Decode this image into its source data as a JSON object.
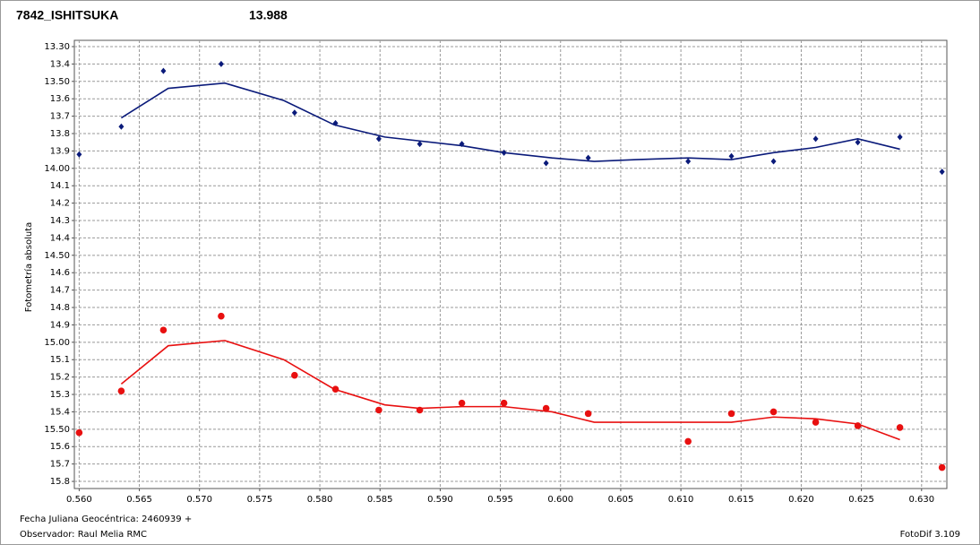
{
  "chart_data": {
    "type": "scatter",
    "title": "7842_ISHITSUKA",
    "title_color": "#e01010",
    "header_value": "13.988",
    "header_value_color": "#101080",
    "ylabel": "Fotometría absoluta",
    "footer_left": [
      "Fecha Juliana Geocéntrica: 2460939 +",
      "Observador: Raul Melia RMC"
    ],
    "footer_right": "FotoDif 3.109",
    "xlim": [
      0.5596,
      0.6321
    ],
    "ylim": [
      13.264,
      15.841
    ],
    "y_inverted": true,
    "grid": true,
    "xticks": [
      {
        "value": 0.56,
        "label": "0.560"
      },
      {
        "value": 0.565,
        "label": "0.565"
      },
      {
        "value": 0.57,
        "label": "0.570"
      },
      {
        "value": 0.575,
        "label": "0.575"
      },
      {
        "value": 0.58,
        "label": "0.580"
      },
      {
        "value": 0.585,
        "label": "0.585"
      },
      {
        "value": 0.59,
        "label": "0.590"
      },
      {
        "value": 0.595,
        "label": "0.595"
      },
      {
        "value": 0.6,
        "label": "0.600"
      },
      {
        "value": 0.605,
        "label": "0.605"
      },
      {
        "value": 0.61,
        "label": "0.610"
      },
      {
        "value": 0.615,
        "label": "0.615"
      },
      {
        "value": 0.62,
        "label": "0.620"
      },
      {
        "value": 0.625,
        "label": "0.625"
      },
      {
        "value": 0.63,
        "label": "0.630"
      }
    ],
    "yticks": [
      {
        "value": 13.3,
        "label": "13.30"
      },
      13.4,
      {
        "value": 13.5,
        "label": "13.50"
      },
      13.6,
      13.7,
      13.8,
      13.9,
      {
        "value": 14.0,
        "label": "14.00"
      },
      14.1,
      14.2,
      14.3,
      14.4,
      {
        "value": 14.5,
        "label": "14.50"
      },
      14.6,
      14.7,
      14.8,
      14.9,
      {
        "value": 15.0,
        "label": "15.00"
      },
      15.1,
      15.2,
      15.3,
      15.4,
      {
        "value": 15.5,
        "label": "15.50"
      },
      15.6,
      15.7,
      15.8
    ],
    "series": [
      {
        "mode": "markers",
        "marker": "diamond",
        "color": "#0a1a7a",
        "x": [
          0.56,
          0.5635,
          0.567,
          0.5718,
          0.5779,
          0.5813,
          0.5849,
          0.5883,
          0.5918,
          0.5953,
          0.5988,
          0.6023,
          0.6106,
          0.6142,
          0.6177,
          0.6212,
          0.6247,
          0.6282,
          0.6317
        ],
        "values": [
          13.92,
          13.76,
          13.44,
          13.4,
          13.68,
          13.74,
          13.83,
          13.86,
          13.86,
          13.91,
          13.97,
          13.94,
          13.96,
          13.93,
          13.96,
          13.83,
          13.85,
          13.82,
          14.02
        ]
      },
      {
        "mode": "line",
        "color": "#0a1a7a",
        "x": [
          0.5635,
          0.5674,
          0.5721,
          0.577,
          0.5812,
          0.5854,
          0.5918,
          0.5953,
          0.5993,
          0.6028,
          0.6063,
          0.6106,
          0.6142,
          0.6177,
          0.6212,
          0.6247,
          0.6282
        ],
        "values": [
          13.71,
          13.54,
          13.51,
          13.61,
          13.75,
          13.82,
          13.87,
          13.91,
          13.94,
          13.96,
          13.95,
          13.94,
          13.95,
          13.91,
          13.88,
          13.83,
          13.89
        ]
      },
      {
        "mode": "markers",
        "marker": "circle",
        "color": "#e81010",
        "x": [
          0.56,
          0.5635,
          0.567,
          0.5718,
          0.5779,
          0.5813,
          0.5849,
          0.5883,
          0.5918,
          0.5953,
          0.5988,
          0.6023,
          0.6106,
          0.6142,
          0.6177,
          0.6212,
          0.6247,
          0.6282,
          0.6317
        ],
        "values": [
          15.52,
          15.28,
          14.93,
          14.85,
          15.19,
          15.27,
          15.39,
          15.39,
          15.35,
          15.35,
          15.38,
          15.41,
          15.57,
          15.41,
          15.4,
          15.46,
          15.48,
          15.49,
          15.72
        ]
      },
      {
        "mode": "line",
        "color": "#e81010",
        "x": [
          0.5635,
          0.5674,
          0.5721,
          0.577,
          0.5812,
          0.5854,
          0.5883,
          0.5918,
          0.5953,
          0.5993,
          0.6028,
          0.6063,
          0.6106,
          0.6142,
          0.6177,
          0.6212,
          0.6247,
          0.6282
        ],
        "values": [
          15.24,
          15.02,
          14.99,
          15.1,
          15.27,
          15.36,
          15.38,
          15.37,
          15.37,
          15.4,
          15.46,
          15.46,
          15.46,
          15.46,
          15.43,
          15.44,
          15.47,
          15.56
        ]
      }
    ]
  }
}
